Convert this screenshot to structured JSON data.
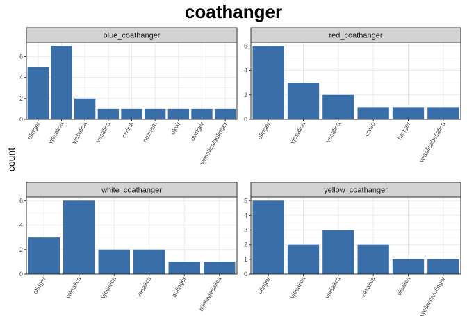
{
  "title": "coathanger",
  "ylabel": "count",
  "bar_color": "#3A6EA8",
  "strip_color": "#D3D3D3",
  "chart_data": [
    {
      "type": "bar",
      "facet": "blue_coathanger",
      "categories": [
        "ofinger",
        "vjesalica",
        "vješalica",
        "vesalica",
        "civiluk",
        "neznam",
        "okvir",
        "ovinger",
        "vjesalica/aufinger"
      ],
      "values": [
        5,
        7,
        2,
        1,
        1,
        1,
        1,
        1,
        1
      ],
      "ylim": [
        0,
        7.35
      ],
      "yticks": [
        0,
        2,
        4,
        6
      ]
    },
    {
      "type": "bar",
      "facet": "red_coathanger",
      "categories": [
        "ofinger",
        "vjesalica",
        "vesalica",
        "crveo",
        "hanger",
        "vešalicabešalica"
      ],
      "values": [
        6,
        3,
        2,
        1,
        1,
        1
      ],
      "ylim": [
        0,
        6.3
      ],
      "yticks": [
        0,
        2,
        4,
        6
      ]
    },
    {
      "type": "bar",
      "facet": "white_coathanger",
      "categories": [
        "ofinger",
        "vjesalica",
        "vješalica",
        "vesalica",
        "aufinger",
        "bijelavješalica"
      ],
      "values": [
        3,
        6,
        2,
        2,
        1,
        1
      ],
      "ylim": [
        0,
        6.3
      ],
      "yticks": [
        0,
        2,
        4,
        6
      ]
    },
    {
      "type": "bar",
      "facet": "yellow_coathanger",
      "categories": [
        "ofinger",
        "vjesalica",
        "vješalica",
        "vesalica",
        "višalica",
        "vješalica/ofinger"
      ],
      "values": [
        5,
        2,
        3,
        2,
        1,
        1
      ],
      "ylim": [
        0,
        5.25
      ],
      "yticks": [
        0,
        1,
        2,
        3,
        4,
        5
      ]
    }
  ]
}
